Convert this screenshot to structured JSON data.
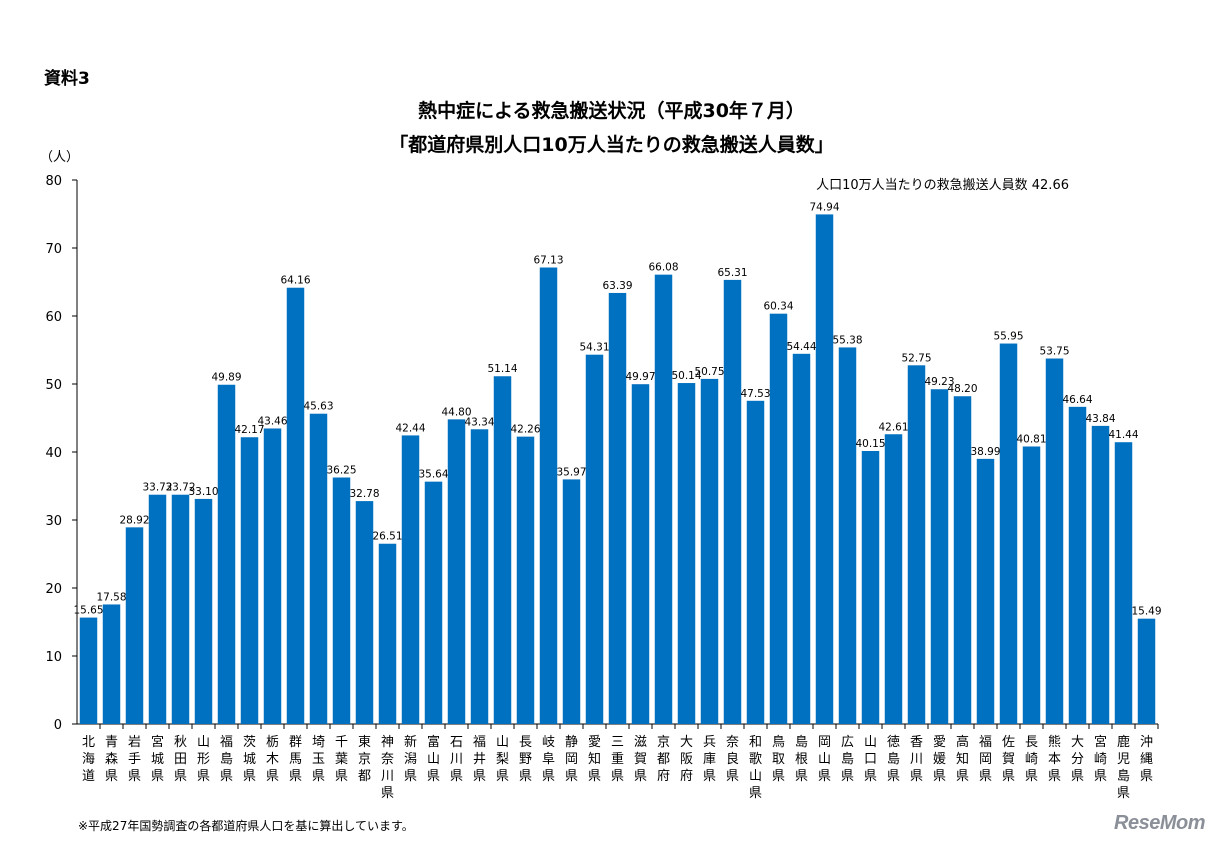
{
  "document_label": "資料3",
  "title_line1": "熱中症による救急搬送状況（平成30年７月）",
  "title_line2": "「都道府県別人口10万人当たりの救急搬送人員数」",
  "footnote": "※平成27年国勢調査の各都道府県人口を基に算出しています。",
  "watermark": "ReseMom",
  "colors": {
    "bar": "#0070C0"
  },
  "chart_data": {
    "type": "bar",
    "ylabel": "（人）",
    "ylim": [
      0,
      80
    ],
    "yticks": [
      0,
      10,
      20,
      30,
      40,
      50,
      60,
      70,
      80
    ],
    "annotation": "人口10万人当たりの救急搬送人員数 42.66",
    "categories": [
      "北海道",
      "青森県",
      "岩手県",
      "宮城県",
      "秋田県",
      "山形県",
      "福島県",
      "茨城県",
      "栃木県",
      "群馬県",
      "埼玉県",
      "千葉県",
      "東京都",
      "神奈川県",
      "新潟県",
      "富山県",
      "石川県",
      "福井県",
      "山梨県",
      "長野県",
      "岐阜県",
      "静岡県",
      "愛知県",
      "三重県",
      "滋賀県",
      "京都府",
      "大阪府",
      "兵庫県",
      "奈良県",
      "和歌山県",
      "鳥取県",
      "島根県",
      "岡山県",
      "広島県",
      "山口県",
      "徳島県",
      "香川県",
      "愛媛県",
      "高知県",
      "福岡県",
      "佐賀県",
      "長崎県",
      "熊本県",
      "大分県",
      "宮崎県",
      "鹿児島県",
      "沖縄県"
    ],
    "values": [
      15.65,
      17.58,
      28.92,
      33.72,
      33.72,
      33.1,
      49.89,
      42.17,
      43.46,
      64.16,
      45.63,
      36.25,
      32.78,
      26.51,
      42.44,
      35.64,
      44.8,
      43.34,
      51.14,
      42.26,
      67.13,
      35.97,
      54.31,
      63.39,
      49.97,
      66.08,
      50.14,
      50.75,
      65.31,
      47.53,
      60.34,
      54.44,
      74.94,
      55.38,
      40.15,
      42.61,
      52.75,
      49.23,
      48.2,
      38.99,
      55.95,
      40.81,
      53.75,
      46.64,
      43.84,
      41.44,
      15.49
    ],
    "value_labels": [
      "15.65",
      "17.58",
      "28.92",
      "33.72",
      "33.72",
      "33.10",
      "49.89",
      "42.17",
      "43.46",
      "64.16",
      "45.63",
      "36.25",
      "32.78",
      "26.51",
      "42.44",
      "35.64",
      "44.80",
      "43.34",
      "51.14",
      "42.26",
      "67.13",
      "35.97",
      "54.31",
      "63.39",
      "49.97",
      "66.08",
      "50.14",
      "50.75",
      "65.31",
      "47.53",
      "60.34",
      "54.44",
      "74.94",
      "55.38",
      "40.15",
      "42.61",
      "52.75",
      "49.23",
      "48.20",
      "38.99",
      "55.95",
      "40.81",
      "53.75",
      "46.64",
      "43.84",
      "41.44",
      "15.49"
    ]
  }
}
